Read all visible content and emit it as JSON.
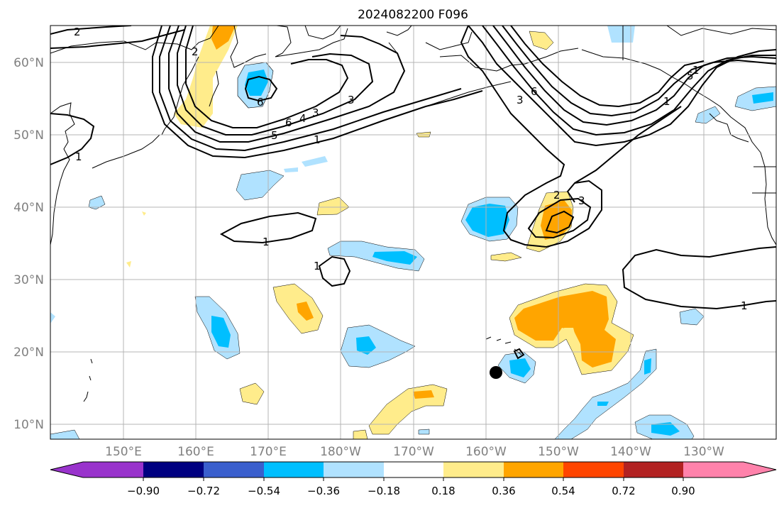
{
  "title": "2024082200 F096",
  "lat_labels": [
    "60°N",
    "50°N",
    "40°N",
    "30°N",
    "20°N",
    "10°N"
  ],
  "lon_labels": [
    "150°E",
    "160°E",
    "170°E",
    "180°W",
    "170°W",
    "160°W",
    "150°W",
    "140°W",
    "130°W"
  ],
  "contour_labels": [
    "2",
    "1",
    "2",
    "3",
    "5",
    "6",
    "3",
    "4",
    "5",
    "6",
    "1",
    "1",
    "1",
    "1",
    "2",
    "3",
    "3",
    "6",
    "1",
    "1"
  ],
  "colorbar": {
    "ticks": [
      "−0.90",
      "−0.72",
      "−0.54",
      "−0.36",
      "−0.18",
      "0.18",
      "0.36",
      "0.54",
      "0.72",
      "0.90"
    ],
    "colors": [
      "#9933cc",
      "#000080",
      "#3a5fcd",
      "#00bfff",
      "#b0e2ff",
      "#ffffff",
      "#ffec8b",
      "#ffa500",
      "#ff4500",
      "#b22222",
      "#ff82ab"
    ]
  },
  "colors": {
    "neg_light": "#b0e2ff",
    "neg_mid": "#00bfff",
    "pos_light": "#ffec8b",
    "pos_mid": "#ffa500",
    "contour": "#000000",
    "grid": "#b4b4b4",
    "tick_label": "#808080"
  }
}
